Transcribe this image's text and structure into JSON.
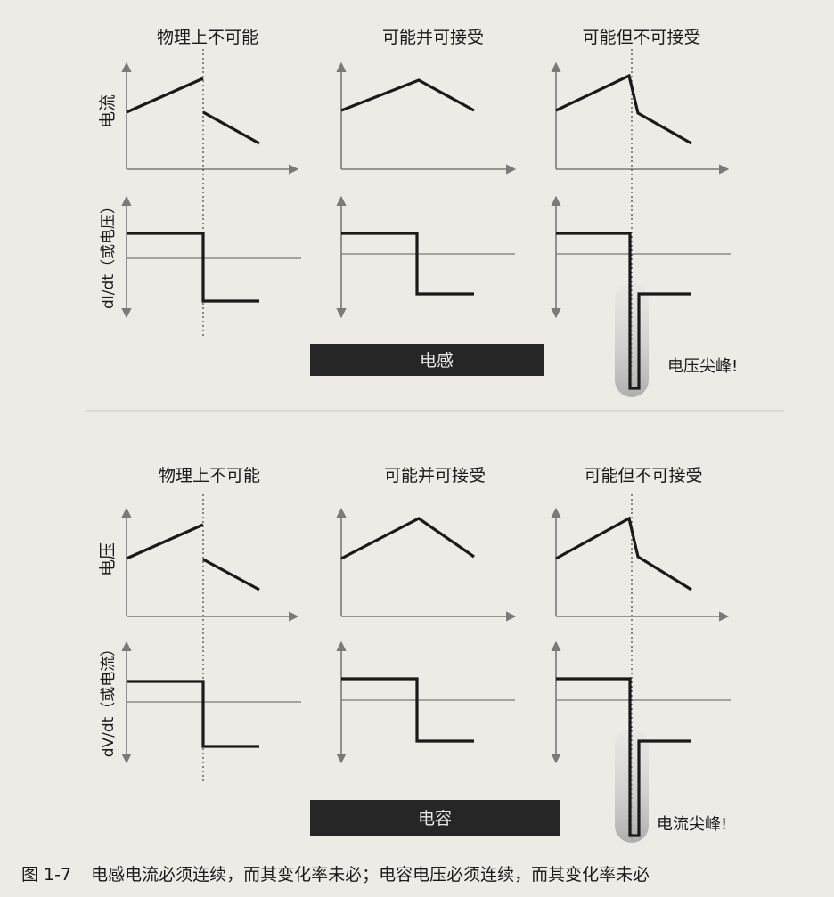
{
  "inductor_panel": {
    "col_titles": [
      "物理上不可能",
      "可能并可接受",
      "可能但不可接受"
    ],
    "y_label_top": "电流",
    "y_label_bottom": "dI/dt（或电压）",
    "name_bar": "电感",
    "spike_label": "电压尖峰!"
  },
  "capacitor_panel": {
    "col_titles": [
      "物理上不可能",
      "可能并可接受",
      "可能但不可接受"
    ],
    "y_label_top": "电压",
    "y_label_bottom": "dV/dt（或电流）",
    "name_bar": "电容",
    "spike_label": "电流尖峰!"
  },
  "caption": {
    "figure_number": "图 1-7",
    "text": "电感电流必须连续，而其变化率未必；电容电压必须连续，而其变化率未必"
  },
  "colors": {
    "background": "#ecebe6",
    "axis": "#7a7a7a",
    "trace": "#1a1a1a",
    "name_bar": "#262626",
    "spike_glow": "#b8b8b8"
  }
}
